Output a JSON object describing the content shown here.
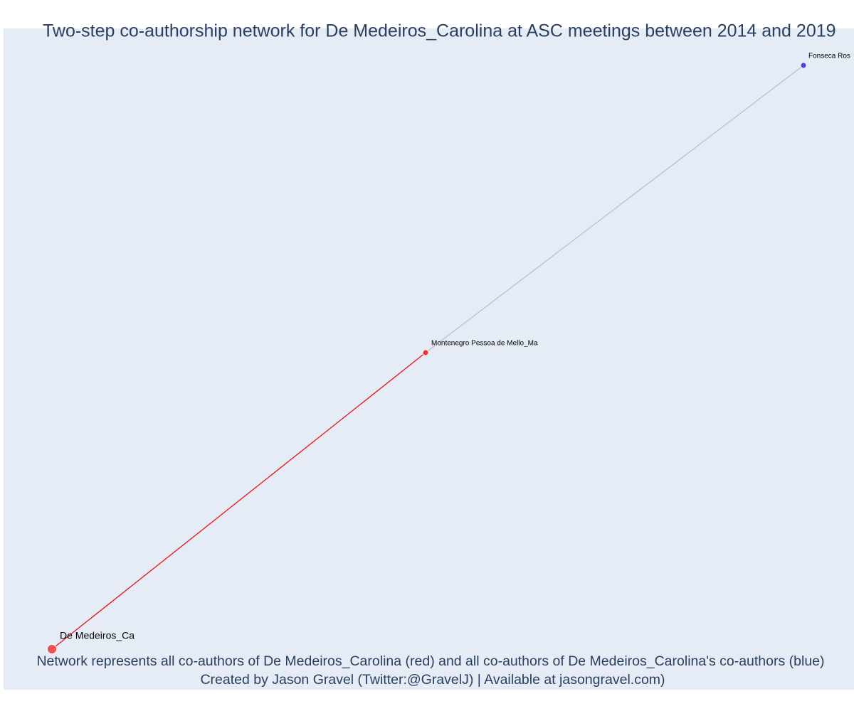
{
  "title": "Two-step co-authorship network for De Medeiros_Carolina at ASC meetings between 2014 and 2019",
  "nodes": [
    {
      "label": "De Medeiros_Ca",
      "color": "#ef4a4a"
    },
    {
      "label": "Montenegro Pessoa de Mello_Ma",
      "color": "#ef2b2b"
    },
    {
      "label": "Fonseca Ros",
      "color": "#3b3bef"
    }
  ],
  "edges": [
    {
      "from": 0,
      "to": 1,
      "color": "#ee1111"
    },
    {
      "from": 1,
      "to": 2,
      "color": "#bcbfcc"
    }
  ],
  "footer": [
    "Network represents all co-authors of De Medeiros_Carolina (red) and all co-authors of De Medeiros_Carolina's co-authors (blue)",
    "Created by Jason Gravel (Twitter:@GravelJ) | Available at jasongravel.com)"
  ]
}
